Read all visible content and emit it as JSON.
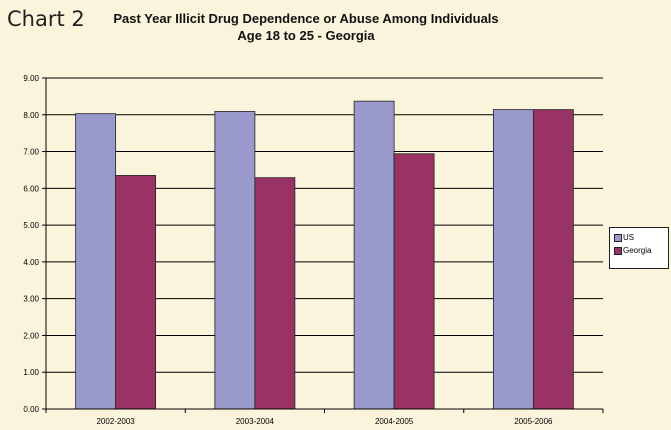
{
  "header": {
    "chart_label": "Chart 2",
    "title_line1": "Past Year Illicit Drug Dependence or Abuse Among Individuals",
    "title_line2": "Age 18 to 25 - Georgia"
  },
  "colors": {
    "us": "#9999cc",
    "georgia": "#993366",
    "background": "#fbf4dc",
    "grid": "#000000"
  },
  "chart_data": {
    "type": "bar",
    "title": "Past Year Illicit Drug Dependence or Abuse Among Individuals Age 18 to 25 - Georgia",
    "categories": [
      "2002-2003",
      "2003-2004",
      "2004-2005",
      "2005-2006"
    ],
    "series": [
      {
        "name": "US",
        "values": [
          8.03,
          8.09,
          8.37,
          8.14
        ]
      },
      {
        "name": "Georgia",
        "values": [
          6.35,
          6.29,
          6.94,
          8.14
        ]
      }
    ],
    "ylim": [
      0,
      9
    ],
    "yticks": [
      "0.00",
      "1.00",
      "2.00",
      "3.00",
      "4.00",
      "5.00",
      "6.00",
      "7.00",
      "8.00",
      "9.00"
    ],
    "grid": true,
    "legend_position": "right",
    "xlabel": "",
    "ylabel": ""
  }
}
